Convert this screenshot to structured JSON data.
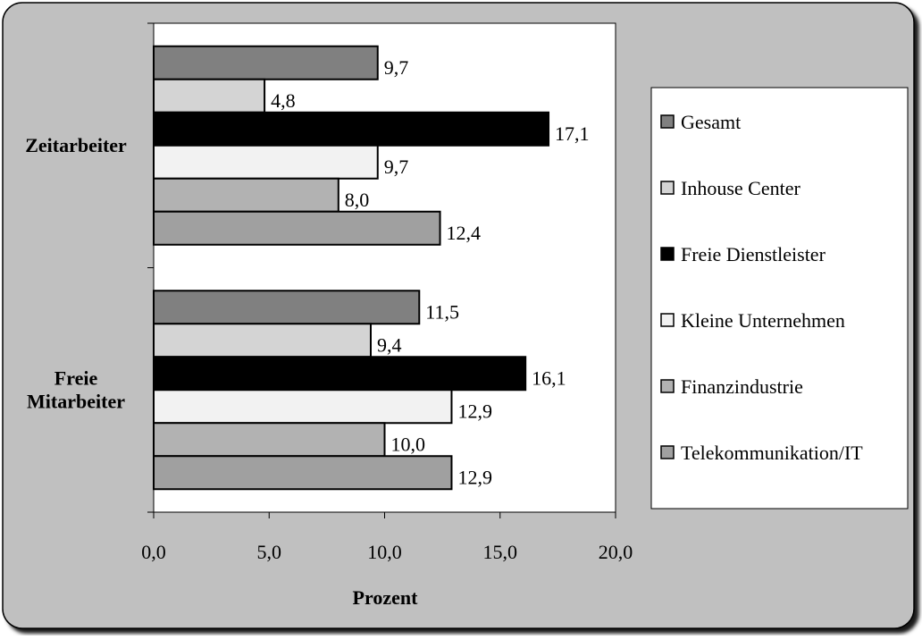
{
  "chart_data": {
    "type": "bar",
    "orientation": "horizontal",
    "categories": [
      "Zeitarbeiter",
      "Freie Mitarbeiter"
    ],
    "category_lines": [
      [
        "Zeitarbeiter"
      ],
      [
        "Freie",
        "Mitarbeiter"
      ]
    ],
    "series": [
      {
        "name": "Gesamt",
        "color": "#808080",
        "values": [
          9.7,
          11.5
        ],
        "labels": [
          "9,7",
          "11,5"
        ]
      },
      {
        "name": "Inhouse Center",
        "color": "#d4d4d4",
        "values": [
          4.8,
          9.4
        ],
        "labels": [
          "4,8",
          "9,4"
        ]
      },
      {
        "name": "Freie Dienstleister",
        "color": "#000000",
        "values": [
          17.1,
          16.1
        ],
        "labels": [
          "17,1",
          "16,1"
        ]
      },
      {
        "name": "Kleine Unternehmen",
        "color": "#f2f2f2",
        "values": [
          9.7,
          12.9
        ],
        "labels": [
          "9,7",
          "12,9"
        ]
      },
      {
        "name": "Finanzindustrie",
        "color": "#b2b2b2",
        "values": [
          8.0,
          10.0
        ],
        "labels": [
          "8,0",
          "10,0"
        ]
      },
      {
        "name": "Telekommunikation/IT",
        "color": "#a0a0a0",
        "values": [
          12.4,
          12.9
        ],
        "labels": [
          "12,4",
          "12,9"
        ]
      }
    ],
    "xlim": [
      0,
      20
    ],
    "xticks": [
      0,
      5,
      10,
      15,
      20
    ],
    "xtick_labels": [
      "0,0",
      "5,0",
      "10,0",
      "15,0",
      "20,0"
    ],
    "xlabel": "Prozent",
    "grid": false,
    "legend_position": "right",
    "background_color": "#c0c0c0",
    "plot_background_color": "#ffffff"
  }
}
